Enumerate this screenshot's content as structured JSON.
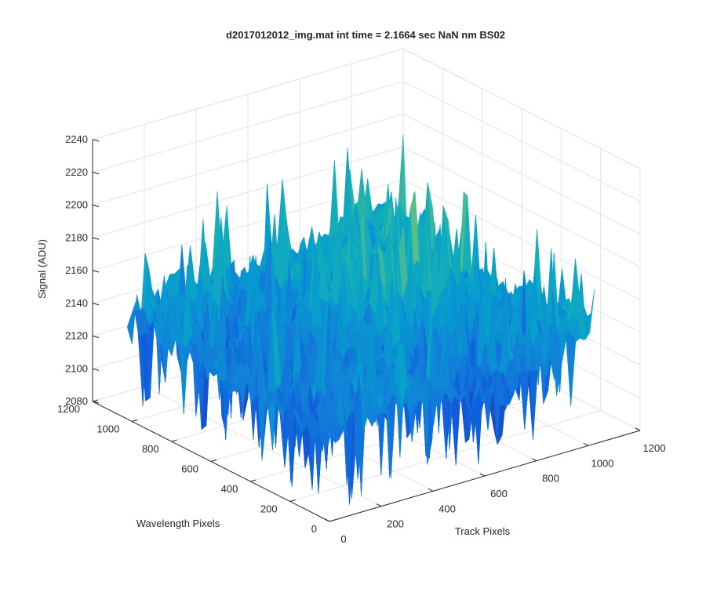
{
  "figure": {
    "title": "d2017012012_img.mat int time = 2.1664 sec  NaN nm BS02"
  },
  "chart_data": {
    "type": "surface",
    "title": "d2017012012_img.mat int time = 2.1664 sec  NaN nm BS02",
    "xlabel": "Track Pixels",
    "ylabel": "Wavelength Pixels",
    "zlabel": "Signal (ADU)",
    "xlim": [
      0,
      1200
    ],
    "ylim": [
      0,
      1200
    ],
    "zlim": [
      2080,
      2240
    ],
    "x_ticks": [
      "0",
      "200",
      "400",
      "600",
      "800",
      "1000",
      "1200"
    ],
    "y_ticks": [
      "0",
      "200",
      "400",
      "600",
      "800",
      "1000",
      "1200"
    ],
    "z_ticks": [
      "2080",
      "2100",
      "2120",
      "2140",
      "2160",
      "2180",
      "2200",
      "2220",
      "2240"
    ],
    "grid": true,
    "colormap": "parula",
    "x_extent": [
      0,
      1024
    ],
    "y_extent": [
      0,
      1024
    ],
    "surface_signal_range": [
      2085,
      2232
    ],
    "surface_typical_level": 2145,
    "noise": "high-frequency random noise; signal increases toward high Track Pixels / high Wavelength Pixels corner"
  }
}
